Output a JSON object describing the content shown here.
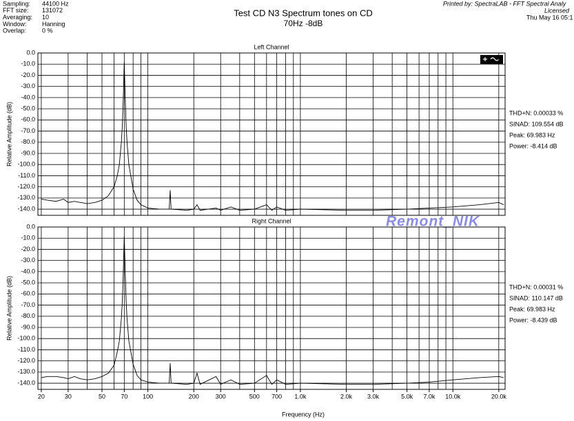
{
  "header": {
    "info": [
      [
        "Sampling:",
        "44100 Hz"
      ],
      [
        "FFT size:",
        "131072"
      ],
      [
        "Averaging:",
        "10"
      ],
      [
        "Window:",
        "Hanning"
      ],
      [
        "Overlap:",
        "0 %"
      ]
    ],
    "title": "Test CD N3  Spectrum tones on CD",
    "subtitle": "70Hz  -8dB",
    "printed_by": [
      "Printed by: SpectraLAB - FFT Spectral Analy",
      "Licensed",
      "Thu May 16 05:1"
    ],
    "x_axis_label": "Frequency (Hz)"
  },
  "chart_data": [
    {
      "type": "line",
      "title": "Left Channel",
      "y_axis_label": "Relative Amplitude (dB)",
      "log_x": true,
      "color": "#000000",
      "watermark": "Remont_NIK",
      "stats": [
        "THD+N: 0.00033 %",
        "SINAD: 109.554 dB",
        "Peak: 69.983 Hz",
        "Power: -8.414 dB"
      ],
      "xlim": [
        19,
        22000
      ],
      "ylim": [
        -145.5,
        0
      ],
      "xgrid": [
        20,
        30,
        40,
        50,
        60,
        70,
        80,
        90,
        100,
        200,
        300,
        400,
        500,
        600,
        700,
        800,
        900,
        1000,
        2000,
        3000,
        4000,
        5000,
        6000,
        7000,
        8000,
        9000,
        10000,
        20000
      ],
      "yticks": [
        {
          "value": 0,
          "label": "0.0"
        },
        {
          "value": -10,
          "label": "-10.0"
        },
        {
          "value": -20,
          "label": "-20.0"
        },
        {
          "value": -30,
          "label": "-30.0"
        },
        {
          "value": -40,
          "label": "-40.0"
        },
        {
          "value": -50,
          "label": "-50.0"
        },
        {
          "value": -60,
          "label": "-60.0"
        },
        {
          "value": -70,
          "label": "-70.0"
        },
        {
          "value": -80,
          "label": "-80.0"
        },
        {
          "value": -90,
          "label": "-90.0"
        },
        {
          "value": -100,
          "label": "-100.0"
        },
        {
          "value": -110,
          "label": "-110.0"
        },
        {
          "value": -120,
          "label": "-120.0"
        },
        {
          "value": -130,
          "label": "-130.0"
        },
        {
          "value": -140,
          "label": "-140.0"
        }
      ],
      "x": [
        20,
        22,
        25,
        28,
        30,
        33,
        36,
        40,
        45,
        50,
        55,
        60,
        63,
        65,
        67,
        68,
        69,
        69.6,
        70,
        70.4,
        71,
        72,
        73,
        75,
        80,
        85,
        90,
        100,
        120,
        138,
        140,
        142,
        180,
        200,
        210,
        220,
        280,
        300,
        350,
        400,
        500,
        600,
        650,
        700,
        800,
        1000,
        2000,
        3000,
        5000,
        7000,
        10000,
        15000,
        20000,
        21500
      ],
      "values": [
        -131,
        -132,
        -133,
        -131,
        -134,
        -133,
        -134,
        -135,
        -134,
        -132,
        -128,
        -120,
        -110,
        -100,
        -80,
        -65,
        -40,
        -20,
        -8.4,
        -20,
        -40,
        -65,
        -80,
        -100,
        -122,
        -132,
        -136,
        -139,
        -140,
        -140,
        -123,
        -140,
        -141,
        -140,
        -136,
        -141,
        -139,
        -141,
        -138,
        -141,
        -140,
        -136,
        -141,
        -138,
        -141,
        -140,
        -141,
        -141,
        -140,
        -139,
        -138,
        -136,
        -134,
        -136
      ]
    },
    {
      "type": "line",
      "title": "Right Channel",
      "y_axis_label": "Relative Amplitude (dB)",
      "log_x": true,
      "color": "#000000",
      "stats": [
        "THD+N: 0.00031 %",
        "SINAD: 110.147 dB",
        "Peak: 69.983 Hz",
        "Power: -8.439 dB"
      ],
      "xlim": [
        19,
        22000
      ],
      "ylim": [
        -145.5,
        0
      ],
      "xgrid": [
        20,
        30,
        40,
        50,
        60,
        70,
        80,
        90,
        100,
        200,
        300,
        400,
        500,
        600,
        700,
        800,
        900,
        1000,
        2000,
        3000,
        4000,
        5000,
        6000,
        7000,
        8000,
        9000,
        10000,
        20000
      ],
      "xticks": [
        20,
        30,
        50,
        70,
        100,
        200,
        300,
        500,
        700,
        {
          "value": 1000,
          "label": "1.0k"
        },
        {
          "value": 2000,
          "label": "2.0k"
        },
        {
          "value": 3000,
          "label": "3.0k"
        },
        {
          "value": 5000,
          "label": "5.0k"
        },
        {
          "value": 7000,
          "label": "7.0k"
        },
        {
          "value": 10000,
          "label": "10.0k"
        },
        {
          "value": 20000,
          "label": "20.0k"
        }
      ],
      "yticks": [
        {
          "value": 0,
          "label": "0.0"
        },
        {
          "value": -10,
          "label": "-10.0"
        },
        {
          "value": -20,
          "label": "-20.0"
        },
        {
          "value": -30,
          "label": "-30.0"
        },
        {
          "value": -40,
          "label": "-40.0"
        },
        {
          "value": -50,
          "label": "-50.0"
        },
        {
          "value": -60,
          "label": "-60.0"
        },
        {
          "value": -70,
          "label": "-70.0"
        },
        {
          "value": -80,
          "label": "-80.0"
        },
        {
          "value": -90,
          "label": "-90.0"
        },
        {
          "value": -100,
          "label": "-100.0"
        },
        {
          "value": -110,
          "label": "-110.0"
        },
        {
          "value": -120,
          "label": "-120.0"
        },
        {
          "value": -130,
          "label": "-130.0"
        },
        {
          "value": -140,
          "label": "-140.0"
        }
      ],
      "x": [
        20,
        22,
        25,
        28,
        30,
        33,
        36,
        40,
        45,
        50,
        55,
        60,
        63,
        65,
        67,
        68,
        69,
        69.6,
        70,
        70.4,
        71,
        72,
        73,
        75,
        80,
        85,
        90,
        100,
        120,
        138,
        140,
        142,
        180,
        200,
        210,
        220,
        280,
        300,
        350,
        400,
        500,
        600,
        650,
        700,
        800,
        1000,
        2000,
        3000,
        5000,
        7000,
        10000,
        15000,
        20000,
        21500
      ],
      "values": [
        -135,
        -134,
        -134,
        -135,
        -136,
        -134,
        -136,
        -137,
        -136,
        -134,
        -131,
        -124,
        -112,
        -102,
        -82,
        -66,
        -40,
        -20,
        -8.4,
        -20,
        -40,
        -66,
        -82,
        -102,
        -123,
        -133,
        -137,
        -139,
        -140,
        -140,
        -122,
        -140,
        -141,
        -140,
        -131,
        -141,
        -134,
        -141,
        -137,
        -141,
        -140,
        -133,
        -141,
        -137,
        -141,
        -140,
        -141,
        -141,
        -140,
        -139,
        -137,
        -135,
        -134,
        -135
      ]
    }
  ]
}
